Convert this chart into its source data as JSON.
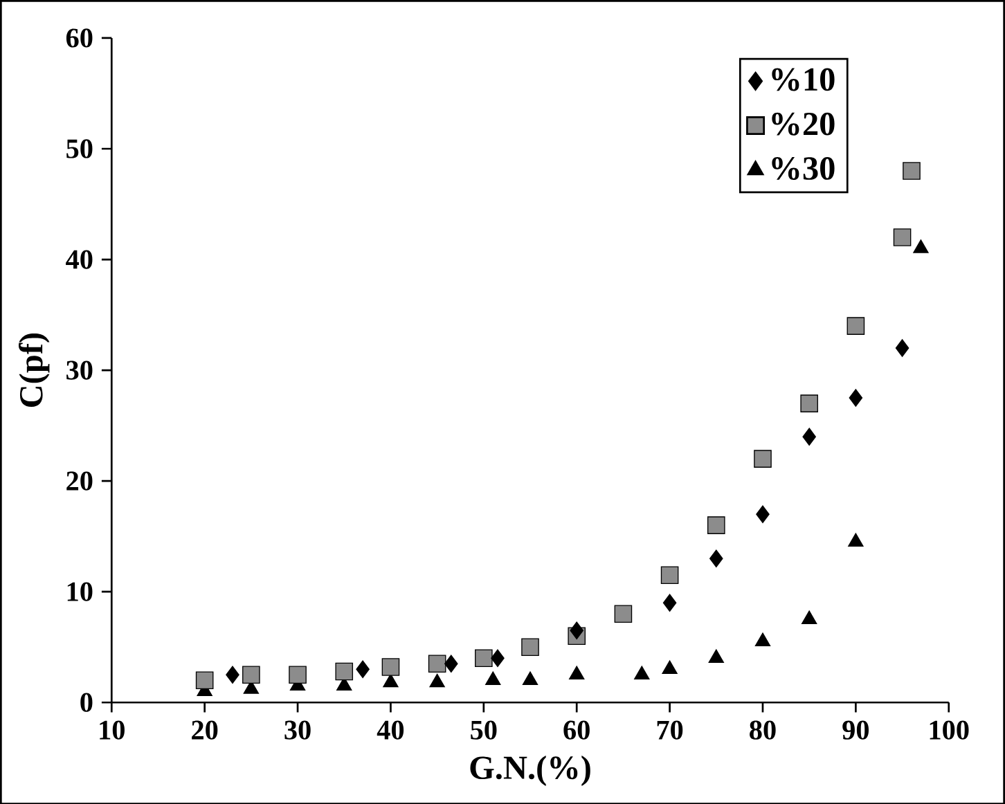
{
  "chart_data": {
    "type": "scatter",
    "xlabel": "G.N.(%)",
    "ylabel": "C(pf)",
    "xlim": [
      10,
      100
    ],
    "ylim": [
      0,
      60
    ],
    "xticks": [
      10,
      20,
      30,
      40,
      50,
      60,
      70,
      80,
      90,
      100
    ],
    "yticks": [
      0,
      10,
      20,
      30,
      40,
      50,
      60
    ],
    "grid": false,
    "legend": "top right",
    "series": [
      {
        "name": "%10",
        "color": "#000000",
        "marker": "diamond",
        "x": [
          23,
          37,
          46.5,
          51.5,
          60,
          70,
          75,
          80,
          85,
          90,
          95
        ],
        "values": [
          2.5,
          3,
          3.5,
          4,
          6.5,
          9,
          13,
          17,
          24,
          27.5,
          32
        ]
      },
      {
        "name": "%20",
        "color": "#8c8c8c",
        "marker": "square",
        "x": [
          20,
          25,
          30,
          35,
          40,
          45,
          50,
          55,
          60,
          65,
          70,
          75,
          80,
          85,
          90,
          95,
          96
        ],
        "values": [
          2,
          2.5,
          2.5,
          2.8,
          3.2,
          3.5,
          4,
          5,
          6,
          8,
          11.5,
          16,
          22,
          27,
          34,
          42,
          48
        ]
      },
      {
        "name": "%30",
        "color": "#000000",
        "marker": "triangle",
        "x": [
          20,
          25,
          30,
          35,
          40,
          45,
          51,
          55,
          60,
          67,
          70,
          75,
          80,
          85,
          90,
          97
        ],
        "values": [
          1,
          1.2,
          1.5,
          1.5,
          1.8,
          1.8,
          2,
          2,
          2.5,
          2.5,
          3,
          4,
          5.5,
          7.5,
          14.5,
          41
        ]
      }
    ]
  }
}
